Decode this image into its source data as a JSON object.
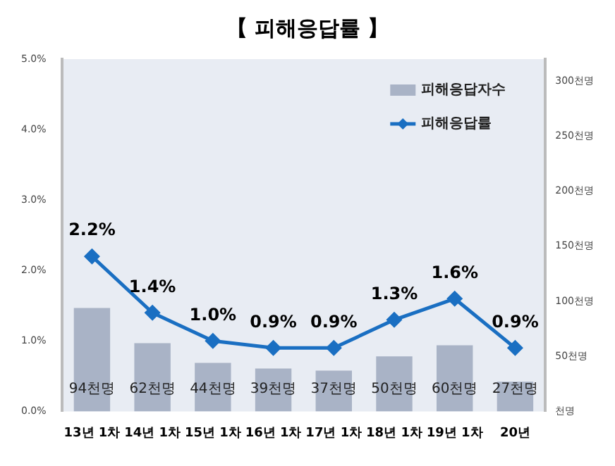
{
  "chart_data": {
    "type": "bar",
    "title": "【 피해응답률 】",
    "categories": [
      "13년 1차",
      "14년 1차",
      "15년 1차",
      "16년 1차",
      "17년 1차",
      "18년 1차",
      "19년 1차",
      "20년"
    ],
    "series": [
      {
        "name": "피해응답자수",
        "axis": "y2",
        "color": "#a9b3c6",
        "values": [
          94,
          62,
          44,
          39,
          37,
          50,
          60,
          27
        ],
        "value_labels": [
          "94천명",
          "62천명",
          "44천명",
          "39천명",
          "37천명",
          "50천명",
          "60천명",
          "27천명"
        ]
      },
      {
        "name": "피해응답률",
        "type": "line",
        "color": "#1a6fc2",
        "marker": "diamond",
        "values": [
          2.2,
          1.4,
          1.0,
          0.9,
          0.9,
          1.3,
          1.6,
          0.9
        ],
        "value_labels": [
          "2.2%",
          "1.4%",
          "1.0%",
          "0.9%",
          "0.9%",
          "1.3%",
          "1.6%",
          "0.9%"
        ]
      }
    ],
    "ylim": [
      0,
      5
    ],
    "yticks": [
      {
        "value": 0,
        "label": "0.0%"
      },
      {
        "value": 1,
        "label": "1.0%"
      },
      {
        "value": 2,
        "label": "2.0%"
      },
      {
        "value": 3,
        "label": "3.0%"
      },
      {
        "value": 4,
        "label": "4.0%"
      },
      {
        "value": 5,
        "label": "5.0%"
      }
    ],
    "y2lim": [
      0,
      320
    ],
    "y2ticks": [
      {
        "value": 0,
        "label": "천명"
      },
      {
        "value": 50,
        "label": "50천명"
      },
      {
        "value": 100,
        "label": "100천명"
      },
      {
        "value": 150,
        "label": "150천명"
      },
      {
        "value": 200,
        "label": "200천명"
      },
      {
        "value": 250,
        "label": "250천명"
      },
      {
        "value": 300,
        "label": "300천명"
      }
    ],
    "grid": false,
    "legend": "top right"
  }
}
